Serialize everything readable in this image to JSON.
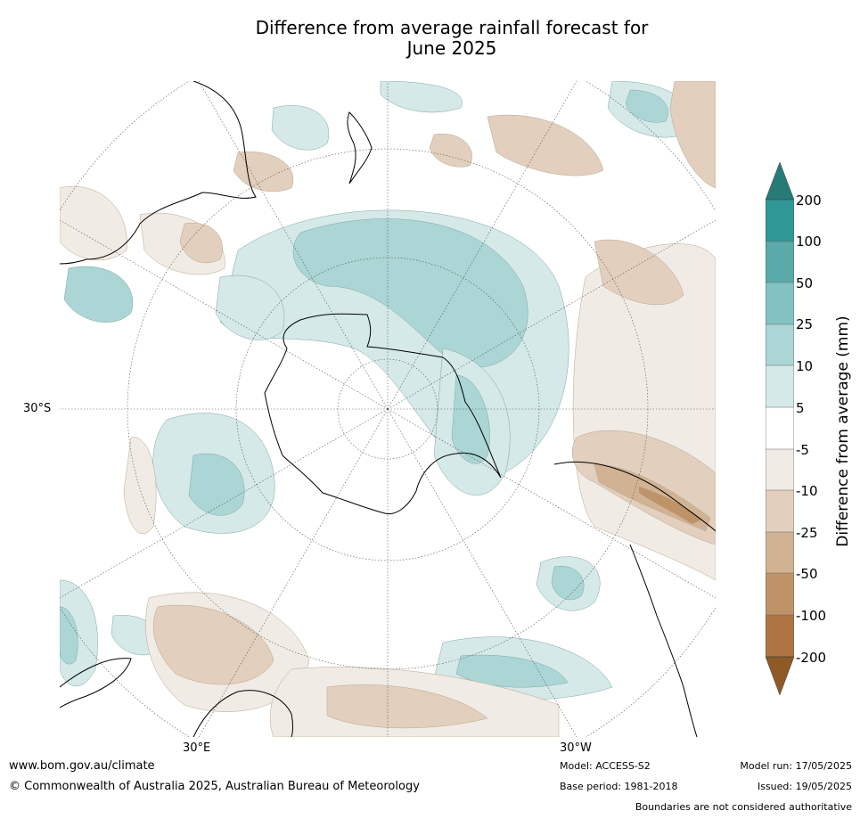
{
  "title_line1": "Difference from average rainfall forecast for",
  "title_line2": "June 2025",
  "map": {
    "projection": "south polar stereographic",
    "lat_label": "30°S",
    "lon_label_left": "30°E",
    "lon_label_right": "30°W"
  },
  "colorbar": {
    "title": "Difference from average (mm)",
    "ticks": [
      "200",
      "100",
      "50",
      "25",
      "10",
      "5",
      "-5",
      "-10",
      "-25",
      "-50",
      "-100",
      "-200"
    ],
    "colors": {
      "above_200": "#267a78",
      "100_to_200": "#2f9896",
      "50_to_100": "#59aaa9",
      "25_to_50": "#82c2c1",
      "10_to_25": "#abd6d5",
      "5_to_10": "#d4e9e8",
      "neutral": "#ffffff",
      "-10_to_-5": "#f0ebe4",
      "-25_to_-10": "#e2cfbd",
      "-50_to_-25": "#d1b394",
      "-100_to_-50": "#bf9368",
      "-200_to_-100": "#ae7542",
      "below_-200": "#8e5a26"
    }
  },
  "footer": {
    "url": "www.bom.gov.au/climate",
    "copyright": "© Commonwealth of Australia 2025, Australian Bureau of Meteorology",
    "model": "Model: ACCESS-S2",
    "base_period": "Base period: 1981-2018",
    "model_run": "Model run: 17/05/2025",
    "issued": "Issued: 19/05/2025",
    "disclaimer": "Boundaries are not considered authoritative"
  }
}
